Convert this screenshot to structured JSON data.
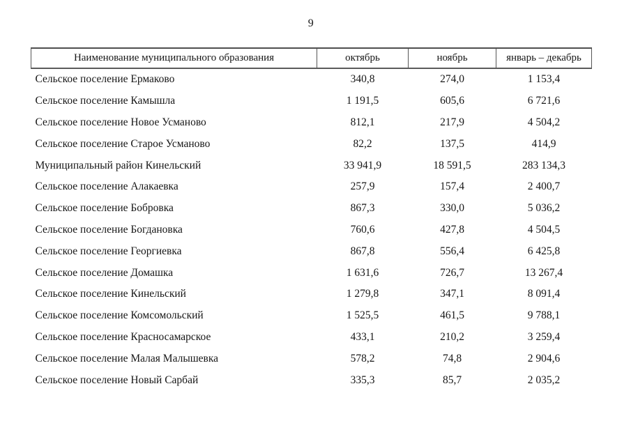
{
  "page": {
    "number": "9"
  },
  "table": {
    "headers": [
      "Наименование муниципального образования",
      "октябрь",
      "ноябрь",
      "январь – декабрь"
    ],
    "rows": [
      [
        "Сельское поселение Ермаково",
        "340,8",
        "274,0",
        "1 153,4"
      ],
      [
        "Сельское поселение Камышла",
        "1 191,5",
        "605,6",
        "6 721,6"
      ],
      [
        "Сельское поселение Новое Усманово",
        "812,1",
        "217,9",
        "4 504,2"
      ],
      [
        "Сельское поселение Старое Усманово",
        "82,2",
        "137,5",
        "414,9"
      ],
      [
        "Муниципальный район Кинельский",
        "33 941,9",
        "18 591,5",
        "283 134,3"
      ],
      [
        "Сельское поселение Алакаевка",
        "257,9",
        "157,4",
        "2 400,7"
      ],
      [
        "Сельское поселение Бобровка",
        "867,3",
        "330,0",
        "5 036,2"
      ],
      [
        "Сельское поселение Богдановка",
        "760,6",
        "427,8",
        "4 504,5"
      ],
      [
        "Сельское поселение Георгиевка",
        "867,8",
        "556,4",
        "6 425,8"
      ],
      [
        "Сельское поселение Домашка",
        "1 631,6",
        "726,7",
        "13 267,4"
      ],
      [
        "Сельское поселение Кинельский",
        "1 279,8",
        "347,1",
        "8 091,4"
      ],
      [
        "Сельское поселение Комсомольский",
        "1 525,5",
        "461,5",
        "9 788,1"
      ],
      [
        "Сельское поселение Красносамарское",
        "433,1",
        "210,2",
        "3 259,4"
      ],
      [
        "Сельское поселение Малая Малышевка",
        "578,2",
        "74,8",
        "2 904,6"
      ],
      [
        "Сельское поселение Новый Сарбай",
        "335,3",
        "85,7",
        "2 035,2"
      ]
    ]
  }
}
